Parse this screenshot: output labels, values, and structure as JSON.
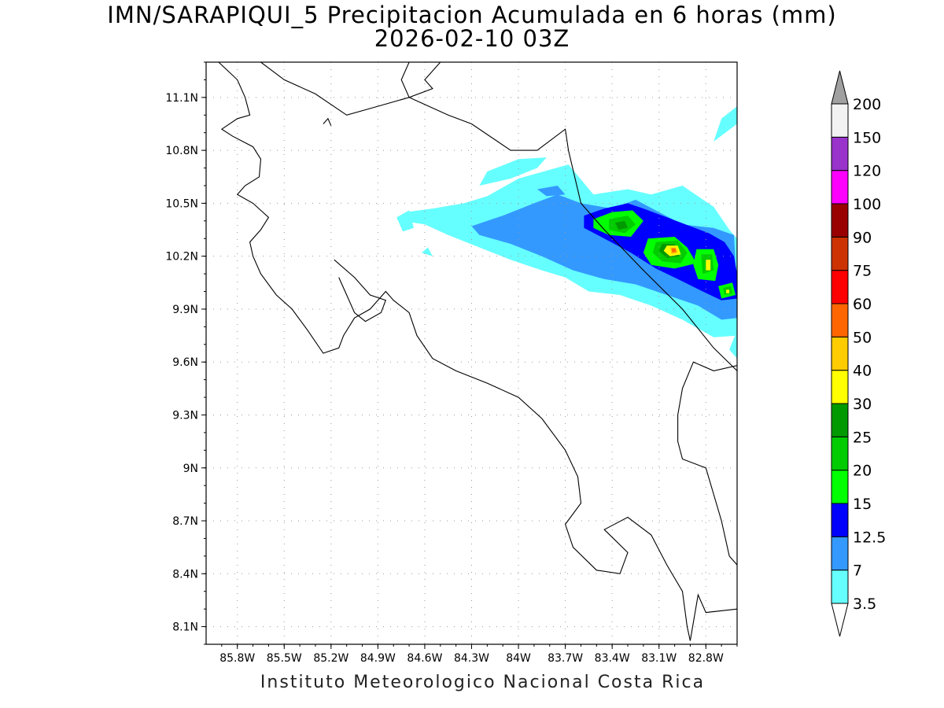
{
  "header": {
    "title": "IMN/SARAPIQUI_5 Precipitacion Acumulada en 6 horas (mm)",
    "subtitle": "2026-02-10 03Z"
  },
  "footer": {
    "text": "Instituto Meteorologico Nacional Costa Rica"
  },
  "map": {
    "lon_range": [
      -86.0,
      -82.6
    ],
    "lat_range": [
      8.0,
      11.3
    ],
    "lon_ticks": [
      {
        "value": -85.8,
        "label": "85.8W"
      },
      {
        "value": -85.5,
        "label": "85.5W"
      },
      {
        "value": -85.2,
        "label": "85.2W"
      },
      {
        "value": -84.9,
        "label": "84.9W"
      },
      {
        "value": -84.6,
        "label": "84.6W"
      },
      {
        "value": -84.3,
        "label": "84.3W"
      },
      {
        "value": -84.0,
        "label": "84W"
      },
      {
        "value": -83.7,
        "label": "83.7W"
      },
      {
        "value": -83.4,
        "label": "83.4W"
      },
      {
        "value": -83.1,
        "label": "83.1W"
      },
      {
        "value": -82.8,
        "label": "82.8W"
      }
    ],
    "lat_ticks": [
      {
        "value": 11.1,
        "label": "11.1N"
      },
      {
        "value": 10.8,
        "label": "10.8N"
      },
      {
        "value": 10.5,
        "label": "10.5N"
      },
      {
        "value": 10.2,
        "label": "10.2N"
      },
      {
        "value": 9.9,
        "label": "9.9N"
      },
      {
        "value": 9.6,
        "label": "9.6N"
      },
      {
        "value": 9.3,
        "label": "9.3N"
      },
      {
        "value": 9.0,
        "label": "9N"
      },
      {
        "value": 8.7,
        "label": "8.7N"
      },
      {
        "value": 8.4,
        "label": "8.4N"
      },
      {
        "value": 8.1,
        "label": "8.1N"
      }
    ],
    "grid": true
  },
  "colorbar": {
    "over_color": "#a0a0a0",
    "under_color": "#ffffff",
    "bins": [
      {
        "color": "#66ffff"
      },
      {
        "color": "#3399ff"
      },
      {
        "color": "#0000ff"
      },
      {
        "color": "#00ff00"
      },
      {
        "color": "#00cc00"
      },
      {
        "color": "#009900"
      },
      {
        "color": "#ffff00"
      },
      {
        "color": "#ffcc00"
      },
      {
        "color": "#ff6600"
      },
      {
        "color": "#ff0000"
      },
      {
        "color": "#cc3300"
      },
      {
        "color": "#990000"
      },
      {
        "color": "#ff00ff"
      },
      {
        "color": "#9933cc"
      },
      {
        "color": "#f2f2f2"
      }
    ],
    "labels": [
      "3.5",
      "7",
      "12.5",
      "15",
      "20",
      "25",
      "30",
      "40",
      "50",
      "60",
      "75",
      "90",
      "100",
      "120",
      "150",
      "200"
    ]
  },
  "layers": [
    {
      "color": "#66ffff",
      "polys": [
        [
          [
            -84.0,
            10.64
          ],
          [
            -83.68,
            10.72
          ],
          [
            -83.52,
            10.55
          ],
          [
            -83.3,
            10.58
          ],
          [
            -83.15,
            10.55
          ],
          [
            -82.95,
            10.6
          ],
          [
            -82.75,
            10.48
          ],
          [
            -82.65,
            10.35
          ],
          [
            -82.6,
            10.3
          ],
          [
            -82.6,
            9.75
          ],
          [
            -82.75,
            9.74
          ],
          [
            -82.95,
            9.84
          ],
          [
            -83.15,
            9.92
          ],
          [
            -83.35,
            9.98
          ],
          [
            -83.55,
            10.0
          ],
          [
            -83.7,
            10.08
          ],
          [
            -83.85,
            10.12
          ],
          [
            -84.05,
            10.18
          ],
          [
            -84.25,
            10.25
          ],
          [
            -84.45,
            10.32
          ],
          [
            -84.6,
            10.38
          ],
          [
            -84.75,
            10.4
          ],
          [
            -84.72,
            10.45
          ],
          [
            -84.55,
            10.47
          ],
          [
            -84.35,
            10.5
          ],
          [
            -84.2,
            10.54
          ]
        ],
        [
          [
            -84.25,
            10.6
          ],
          [
            -84.05,
            10.64
          ],
          [
            -83.88,
            10.7
          ],
          [
            -83.82,
            10.76
          ],
          [
            -84.0,
            10.75
          ],
          [
            -84.2,
            10.68
          ]
        ],
        [
          [
            -84.78,
            10.42
          ],
          [
            -84.7,
            10.46
          ],
          [
            -84.67,
            10.36
          ],
          [
            -84.74,
            10.34
          ]
        ],
        [
          [
            -82.75,
            10.85
          ],
          [
            -82.6,
            10.95
          ],
          [
            -82.6,
            11.05
          ],
          [
            -82.7,
            10.98
          ]
        ],
        [
          [
            -82.6,
            9.78
          ],
          [
            -82.65,
            9.67
          ],
          [
            -82.6,
            9.62
          ]
        ],
        [
          [
            -84.62,
            10.22
          ],
          [
            -84.58,
            10.25
          ],
          [
            -84.55,
            10.2
          ]
        ]
      ]
    },
    {
      "color": "#3399ff",
      "polys": [
        [
          [
            -84.3,
            10.37
          ],
          [
            -84.1,
            10.43
          ],
          [
            -83.9,
            10.5
          ],
          [
            -83.75,
            10.55
          ],
          [
            -83.6,
            10.5
          ],
          [
            -83.4,
            10.47
          ],
          [
            -83.25,
            10.52
          ],
          [
            -83.1,
            10.45
          ],
          [
            -82.95,
            10.38
          ],
          [
            -82.75,
            10.36
          ],
          [
            -82.62,
            10.32
          ],
          [
            -82.6,
            10.0
          ],
          [
            -82.6,
            9.85
          ],
          [
            -82.7,
            9.84
          ],
          [
            -82.85,
            9.92
          ],
          [
            -83.05,
            9.98
          ],
          [
            -83.25,
            10.04
          ],
          [
            -83.45,
            10.07
          ],
          [
            -83.65,
            10.12
          ],
          [
            -83.85,
            10.2
          ],
          [
            -84.05,
            10.27
          ],
          [
            -84.25,
            10.32
          ]
        ],
        [
          [
            -83.88,
            10.58
          ],
          [
            -83.75,
            10.6
          ],
          [
            -83.7,
            10.55
          ],
          [
            -83.82,
            10.54
          ]
        ]
      ]
    },
    {
      "color": "#0000ff",
      "polys": [
        [
          [
            -83.58,
            10.43
          ],
          [
            -83.45,
            10.47
          ],
          [
            -83.3,
            10.5
          ],
          [
            -83.2,
            10.47
          ],
          [
            -83.05,
            10.42
          ],
          [
            -82.9,
            10.37
          ],
          [
            -82.78,
            10.33
          ],
          [
            -82.68,
            10.28
          ],
          [
            -82.62,
            10.2
          ],
          [
            -82.6,
            10.1
          ],
          [
            -82.6,
            9.96
          ],
          [
            -82.7,
            9.95
          ],
          [
            -82.82,
            10.0
          ],
          [
            -82.98,
            10.07
          ],
          [
            -83.12,
            10.13
          ],
          [
            -83.28,
            10.22
          ],
          [
            -83.45,
            10.3
          ],
          [
            -83.58,
            10.36
          ]
        ]
      ]
    },
    {
      "color": "#00ff00",
      "polys": [
        [
          [
            -83.52,
            10.41
          ],
          [
            -83.4,
            10.45
          ],
          [
            -83.27,
            10.46
          ],
          [
            -83.2,
            10.4
          ],
          [
            -83.28,
            10.31
          ],
          [
            -83.42,
            10.32
          ],
          [
            -83.52,
            10.36
          ]
        ],
        [
          [
            -83.17,
            10.3
          ],
          [
            -83.0,
            10.31
          ],
          [
            -82.92,
            10.25
          ],
          [
            -82.86,
            10.16
          ],
          [
            -83.0,
            10.13
          ],
          [
            -83.15,
            10.15
          ],
          [
            -83.2,
            10.22
          ]
        ],
        [
          [
            -82.86,
            10.24
          ],
          [
            -82.75,
            10.24
          ],
          [
            -82.72,
            10.15
          ],
          [
            -82.74,
            10.06
          ],
          [
            -82.85,
            10.07
          ],
          [
            -82.88,
            10.15
          ]
        ],
        [
          [
            -82.72,
            10.03
          ],
          [
            -82.63,
            10.05
          ],
          [
            -82.61,
            9.98
          ],
          [
            -82.7,
            9.96
          ]
        ]
      ]
    },
    {
      "color": "#00cc00",
      "polys": [
        [
          [
            -83.42,
            10.41
          ],
          [
            -83.3,
            10.43
          ],
          [
            -83.25,
            10.38
          ],
          [
            -83.32,
            10.33
          ],
          [
            -83.42,
            10.35
          ]
        ],
        [
          [
            -83.12,
            10.28
          ],
          [
            -82.98,
            10.29
          ],
          [
            -82.92,
            10.22
          ],
          [
            -82.96,
            10.16
          ],
          [
            -83.08,
            10.17
          ],
          [
            -83.14,
            10.22
          ]
        ],
        [
          [
            -82.83,
            10.21
          ],
          [
            -82.76,
            10.21
          ],
          [
            -82.75,
            10.12
          ],
          [
            -82.82,
            10.1
          ]
        ],
        [
          [
            -82.69,
            10.02
          ],
          [
            -82.64,
            10.03
          ],
          [
            -82.63,
            9.99
          ],
          [
            -82.68,
            9.98
          ]
        ]
      ]
    },
    {
      "color": "#009900",
      "polys": [
        [
          [
            -83.38,
            10.39
          ],
          [
            -83.32,
            10.4
          ],
          [
            -83.3,
            10.36
          ],
          [
            -83.36,
            10.35
          ]
        ],
        [
          [
            -83.08,
            10.27
          ],
          [
            -83.0,
            10.27
          ],
          [
            -82.97,
            10.2
          ],
          [
            -83.05,
            10.19
          ],
          [
            -83.1,
            10.23
          ]
        ]
      ]
    },
    {
      "color": "#ffff00",
      "polys": [
        [
          [
            -83.05,
            10.26
          ],
          [
            -82.98,
            10.26
          ],
          [
            -82.96,
            10.21
          ],
          [
            -83.03,
            10.2
          ],
          [
            -83.07,
            10.23
          ]
        ],
        [
          [
            -82.8,
            10.18
          ],
          [
            -82.77,
            10.18
          ],
          [
            -82.77,
            10.12
          ],
          [
            -82.8,
            10.12
          ]
        ],
        [
          [
            -82.67,
            10.01
          ],
          [
            -82.65,
            10.01
          ],
          [
            -82.65,
            9.99
          ],
          [
            -82.67,
            9.99
          ]
        ]
      ]
    },
    {
      "color": "#ffcc00",
      "polys": [
        [
          [
            -83.03,
            10.25
          ],
          [
            -82.99,
            10.25
          ],
          [
            -82.98,
            10.22
          ],
          [
            -83.02,
            10.21
          ]
        ]
      ]
    },
    {
      "color": "#ff6600",
      "polys": [
        [
          [
            -83.02,
            10.245
          ],
          [
            -82.995,
            10.245
          ],
          [
            -82.99,
            10.225
          ],
          [
            -83.015,
            10.22
          ]
        ]
      ]
    }
  ],
  "coast": [
    [
      [
        -85.92,
        11.3
      ],
      [
        -85.8,
        11.2
      ],
      [
        -85.75,
        11.1
      ],
      [
        -85.72,
        11.0
      ],
      [
        -85.8,
        10.98
      ],
      [
        -85.9,
        10.92
      ],
      [
        -85.83,
        10.88
      ],
      [
        -85.7,
        10.82
      ],
      [
        -85.65,
        10.75
      ],
      [
        -85.66,
        10.65
      ],
      [
        -85.75,
        10.6
      ],
      [
        -85.8,
        10.55
      ],
      [
        -85.7,
        10.5
      ],
      [
        -85.6,
        10.42
      ],
      [
        -85.65,
        10.35
      ],
      [
        -85.72,
        10.28
      ],
      [
        -85.7,
        10.2
      ],
      [
        -85.65,
        10.1
      ],
      [
        -85.55,
        9.98
      ],
      [
        -85.45,
        9.9
      ],
      [
        -85.35,
        9.78
      ],
      [
        -85.25,
        9.65
      ],
      [
        -85.15,
        9.68
      ],
      [
        -85.12,
        9.75
      ],
      [
        -85.05,
        9.85
      ],
      [
        -84.95,
        9.9
      ],
      [
        -84.85,
        10.0
      ],
      [
        -84.8,
        9.95
      ],
      [
        -84.7,
        9.88
      ],
      [
        -84.65,
        9.75
      ],
      [
        -84.55,
        9.62
      ],
      [
        -84.4,
        9.55
      ],
      [
        -84.2,
        9.48
      ],
      [
        -84.0,
        9.4
      ],
      [
        -83.85,
        9.28
      ],
      [
        -83.7,
        9.1
      ],
      [
        -83.62,
        8.95
      ],
      [
        -83.6,
        8.8
      ],
      [
        -83.7,
        8.68
      ],
      [
        -83.65,
        8.55
      ],
      [
        -83.5,
        8.42
      ],
      [
        -83.35,
        8.4
      ],
      [
        -83.3,
        8.52
      ],
      [
        -83.45,
        8.65
      ],
      [
        -83.3,
        8.72
      ],
      [
        -83.15,
        8.62
      ],
      [
        -83.05,
        8.45
      ],
      [
        -82.95,
        8.3
      ],
      [
        -82.92,
        8.1
      ],
      [
        -82.9,
        8.02
      ]
    ],
    [
      [
        -85.18,
        10.18
      ],
      [
        -85.05,
        10.08
      ],
      [
        -84.95,
        9.98
      ],
      [
        -84.85,
        9.95
      ],
      [
        -84.88,
        9.88
      ],
      [
        -84.98,
        9.83
      ],
      [
        -85.05,
        9.88
      ],
      [
        -85.1,
        9.98
      ],
      [
        -85.15,
        10.08
      ]
    ],
    [
      [
        -85.65,
        11.3
      ],
      [
        -85.5,
        11.2
      ],
      [
        -85.3,
        11.12
      ],
      [
        -85.1,
        11.0
      ],
      [
        -84.9,
        11.05
      ],
      [
        -84.7,
        11.1
      ],
      [
        -84.45,
        11.0
      ],
      [
        -84.3,
        10.95
      ],
      [
        -84.05,
        10.8
      ],
      [
        -83.88,
        10.8
      ],
      [
        -83.7,
        10.92
      ],
      [
        -83.68,
        10.8
      ],
      [
        -83.6,
        10.5
      ],
      [
        -83.45,
        10.35
      ],
      [
        -83.2,
        10.12
      ],
      [
        -82.95,
        9.9
      ],
      [
        -82.75,
        9.68
      ],
      [
        -82.6,
        9.55
      ]
    ],
    [
      [
        -84.5,
        11.3
      ],
      [
        -84.6,
        11.2
      ],
      [
        -84.55,
        11.15
      ],
      [
        -84.7,
        11.1
      ],
      [
        -84.75,
        11.2
      ],
      [
        -84.7,
        11.3
      ]
    ],
    [
      [
        -82.6,
        8.2
      ],
      [
        -82.8,
        8.18
      ],
      [
        -82.85,
        8.28
      ],
      [
        -82.9,
        8.02
      ]
    ],
    [
      [
        -82.6,
        9.58
      ],
      [
        -82.75,
        9.55
      ],
      [
        -82.88,
        9.6
      ],
      [
        -82.95,
        9.45
      ],
      [
        -82.98,
        9.3
      ],
      [
        -82.98,
        9.15
      ],
      [
        -82.95,
        9.05
      ],
      [
        -82.8,
        9.0
      ],
      [
        -82.75,
        8.85
      ],
      [
        -82.7,
        8.7
      ],
      [
        -82.65,
        8.5
      ],
      [
        -82.6,
        8.45
      ]
    ],
    [
      [
        -85.25,
        10.95
      ],
      [
        -85.22,
        10.98
      ],
      [
        -85.2,
        10.94
      ]
    ]
  ]
}
